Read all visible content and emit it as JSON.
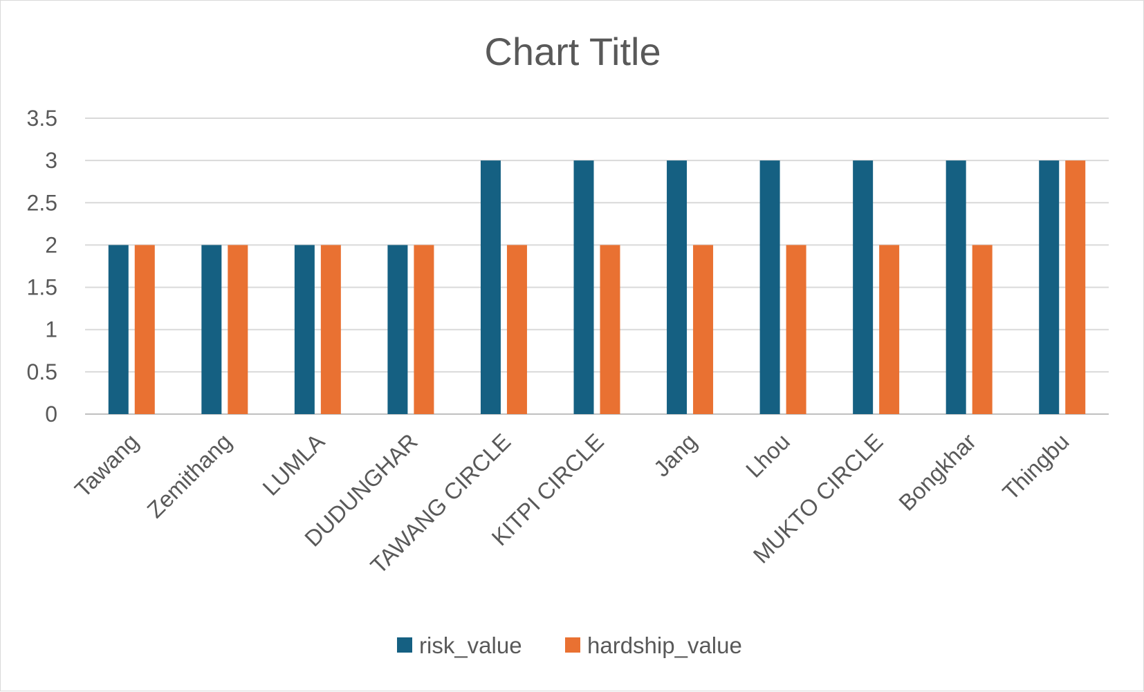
{
  "chart_data": {
    "type": "bar",
    "title": "Chart Title",
    "xlabel": "",
    "ylabel": "",
    "ylim": [
      0,
      3.5
    ],
    "yticks": [
      "0",
      "0.5",
      "1",
      "1.5",
      "2",
      "2.5",
      "3",
      "3.5"
    ],
    "ytick_values": [
      0,
      0.5,
      1,
      1.5,
      2,
      2.5,
      3,
      3.5
    ],
    "grid": true,
    "legend_position": "bottom",
    "categories": [
      "Tawang",
      "Zemithang",
      "LUMLA",
      "DUDUNGHAR",
      "TAWANG CIRCLE",
      "KITPI CIRCLE",
      "Jang",
      "Lhou",
      "MUKTO CIRCLE",
      "Bongkhar",
      "Thingbu"
    ],
    "series": [
      {
        "name": "risk_value",
        "color": "#156082",
        "values": [
          2,
          2,
          2,
          2,
          3,
          3,
          3,
          3,
          3,
          3,
          3
        ]
      },
      {
        "name": "hardship_value",
        "color": "#E97132",
        "values": [
          2,
          2,
          2,
          2,
          2,
          2,
          2,
          2,
          2,
          2,
          3
        ]
      }
    ]
  }
}
